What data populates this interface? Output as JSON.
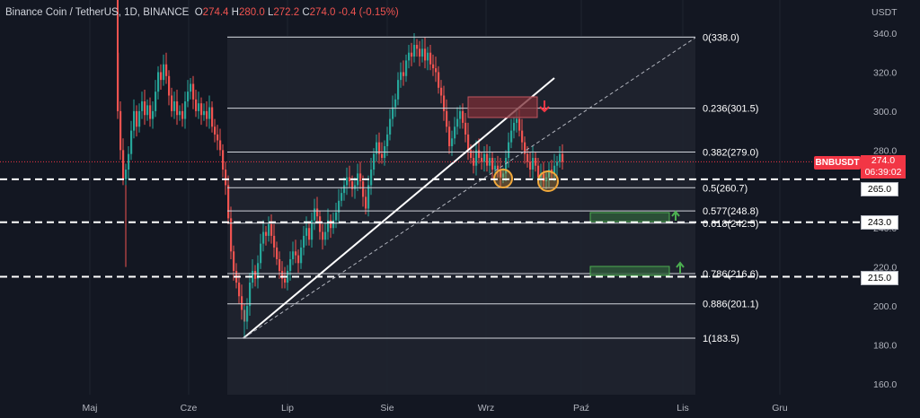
{
  "header": {
    "symbol": "Binance Coin / TetherUS, 1D, BINANCE",
    "o_label": "O",
    "o": "274.4",
    "h_label": "H",
    "h": "280.0",
    "l_label": "L",
    "l": "272.2",
    "c_label": "C",
    "c": "274.0",
    "change": "-0.4 (-0.15%)"
  },
  "currency": "USDT",
  "price_axis": {
    "ticks": [
      "340.0",
      "320.0",
      "300.0",
      "280.0",
      "260.0",
      "240.0",
      "220.0",
      "200.0",
      "180.0",
      "160.0"
    ]
  },
  "time_axis": {
    "labels": [
      "Maj",
      "Cze",
      "Lip",
      "Sie",
      "Wrz",
      "Paź",
      "Lis",
      "Gru"
    ]
  },
  "fib_levels": [
    {
      "ratio": "0",
      "price": "338.0",
      "label": "0(338.0)"
    },
    {
      "ratio": "0.236",
      "price": "301.5",
      "label": "0.236(301.5)"
    },
    {
      "ratio": "0.382",
      "price": "279.0",
      "label": "0.382(279.0)"
    },
    {
      "ratio": "0.5",
      "price": "260.7",
      "label": "0.5(260.7)"
    },
    {
      "ratio": "0.577",
      "price": "248.8",
      "label": "0.577(248.8)"
    },
    {
      "ratio": "0.618",
      "price": "242.5",
      "label": "0.618(242.5)"
    },
    {
      "ratio": "0.786",
      "price": "216.6",
      "label": "0.786(216.6)"
    },
    {
      "ratio": "0.886",
      "price": "201.1",
      "label": "0.886(201.1)"
    },
    {
      "ratio": "1",
      "price": "183.5",
      "label": "1(183.5)"
    }
  ],
  "current_price": {
    "ticker": "BNBUSDT",
    "price": "274.0",
    "countdown": "06:39:02"
  },
  "horizontal_lines": [
    "265.0",
    "243.0",
    "215.0"
  ],
  "colors": {
    "up": "#26a69a",
    "down": "#ef5350",
    "bg": "#131722",
    "fib": "#d1d4dc",
    "resistance_box": "#7b2d35",
    "support_box": "#2e5b3a"
  }
}
